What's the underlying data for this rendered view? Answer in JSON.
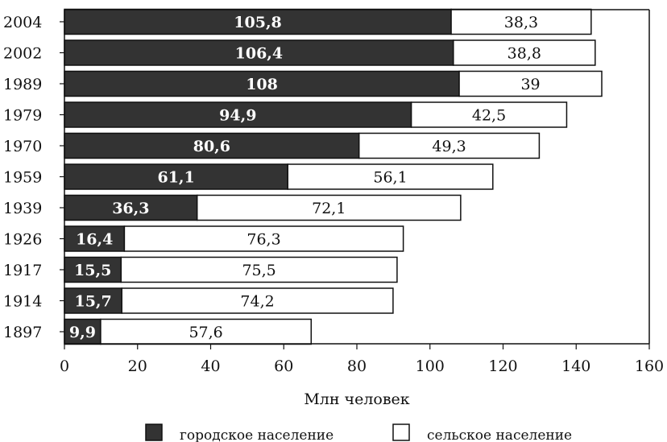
{
  "chart_data": {
    "type": "bar",
    "orientation": "horizontal",
    "stacked": true,
    "categories": [
      "2004",
      "2002",
      "1989",
      "1979",
      "1970",
      "1959",
      "1939",
      "1926",
      "1917",
      "1914",
      "1897"
    ],
    "series": [
      {
        "name": "городское население",
        "color": "#333333",
        "values": [
          105.8,
          106.4,
          108,
          94.9,
          80.6,
          61.1,
          36.3,
          16.4,
          15.5,
          15.7,
          9.9
        ],
        "labels": [
          "105,8",
          "106,4",
          "108",
          "94,9",
          "80,6",
          "61,1",
          "36,3",
          "16,4",
          "15,5",
          "15,7",
          "9,9"
        ]
      },
      {
        "name": "сельское население",
        "color": "#ffffff",
        "values": [
          38.3,
          38.8,
          39,
          42.5,
          49.3,
          56.1,
          72.1,
          76.3,
          75.5,
          74.2,
          57.6
        ],
        "labels": [
          "38,3",
          "38,8",
          "39",
          "42,5",
          "49,3",
          "56,1",
          "72,1",
          "76,3",
          "75,5",
          "74,2",
          "57,6"
        ]
      }
    ],
    "xlabel": "Млн человек",
    "ylabel": "",
    "xlim": [
      0,
      160
    ],
    "xticks": [
      0,
      20,
      40,
      60,
      80,
      100,
      120,
      140,
      160
    ],
    "grid": false,
    "legend": "bottom"
  }
}
